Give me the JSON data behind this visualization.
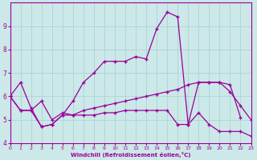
{
  "xlabel": "Windchill (Refroidissement éolien,°C)",
  "background_color": "#cce8e8",
  "grid_color": "#aad4d4",
  "line_color": "#990099",
  "xlim": [
    0,
    23
  ],
  "ylim": [
    4,
    10
  ],
  "yticks": [
    4,
    5,
    6,
    7,
    8,
    9
  ],
  "xticks": [
    0,
    1,
    2,
    3,
    4,
    5,
    6,
    7,
    8,
    9,
    10,
    11,
    12,
    13,
    14,
    15,
    16,
    17,
    18,
    19,
    20,
    21,
    22,
    23
  ],
  "curve1_x": [
    0,
    1,
    2,
    3,
    4,
    5,
    6,
    7,
    8,
    9,
    10,
    11,
    12,
    13,
    14,
    15,
    16,
    17,
    18,
    19,
    20,
    21,
    22,
    23
  ],
  "curve1_y": [
    6.0,
    6.6,
    5.5,
    4.7,
    4.8,
    5.2,
    5.8,
    6.6,
    7.0,
    7.5,
    7.5,
    7.5,
    7.7,
    7.6,
    8.9,
    9.6,
    9.4,
    4.8,
    6.6,
    6.6,
    6.6,
    6.5,
    5.1,
    null
  ],
  "curve2_x": [
    0,
    1,
    2,
    3,
    4,
    5,
    6,
    7,
    8,
    9,
    10,
    11,
    12,
    13,
    14,
    15,
    16,
    17,
    18,
    19,
    20,
    21,
    22,
    23
  ],
  "curve2_y": [
    6.0,
    5.4,
    5.4,
    5.8,
    5.0,
    5.3,
    5.2,
    5.4,
    5.5,
    5.6,
    5.7,
    5.8,
    5.9,
    6.0,
    6.1,
    6.2,
    6.3,
    6.5,
    6.6,
    6.6,
    6.6,
    6.2,
    5.6,
    5.0
  ],
  "curve3_x": [
    0,
    1,
    2,
    3,
    4,
    5,
    6,
    7,
    8,
    9,
    10,
    11,
    12,
    13,
    14,
    15,
    16,
    17,
    18,
    19,
    20,
    21,
    22,
    23
  ],
  "curve3_y": [
    6.0,
    5.4,
    5.4,
    4.7,
    4.8,
    5.2,
    5.2,
    5.2,
    5.2,
    5.3,
    5.3,
    5.4,
    5.4,
    5.4,
    5.4,
    5.4,
    4.8,
    4.8,
    5.3,
    4.8,
    4.5,
    4.5,
    4.5,
    4.3
  ]
}
